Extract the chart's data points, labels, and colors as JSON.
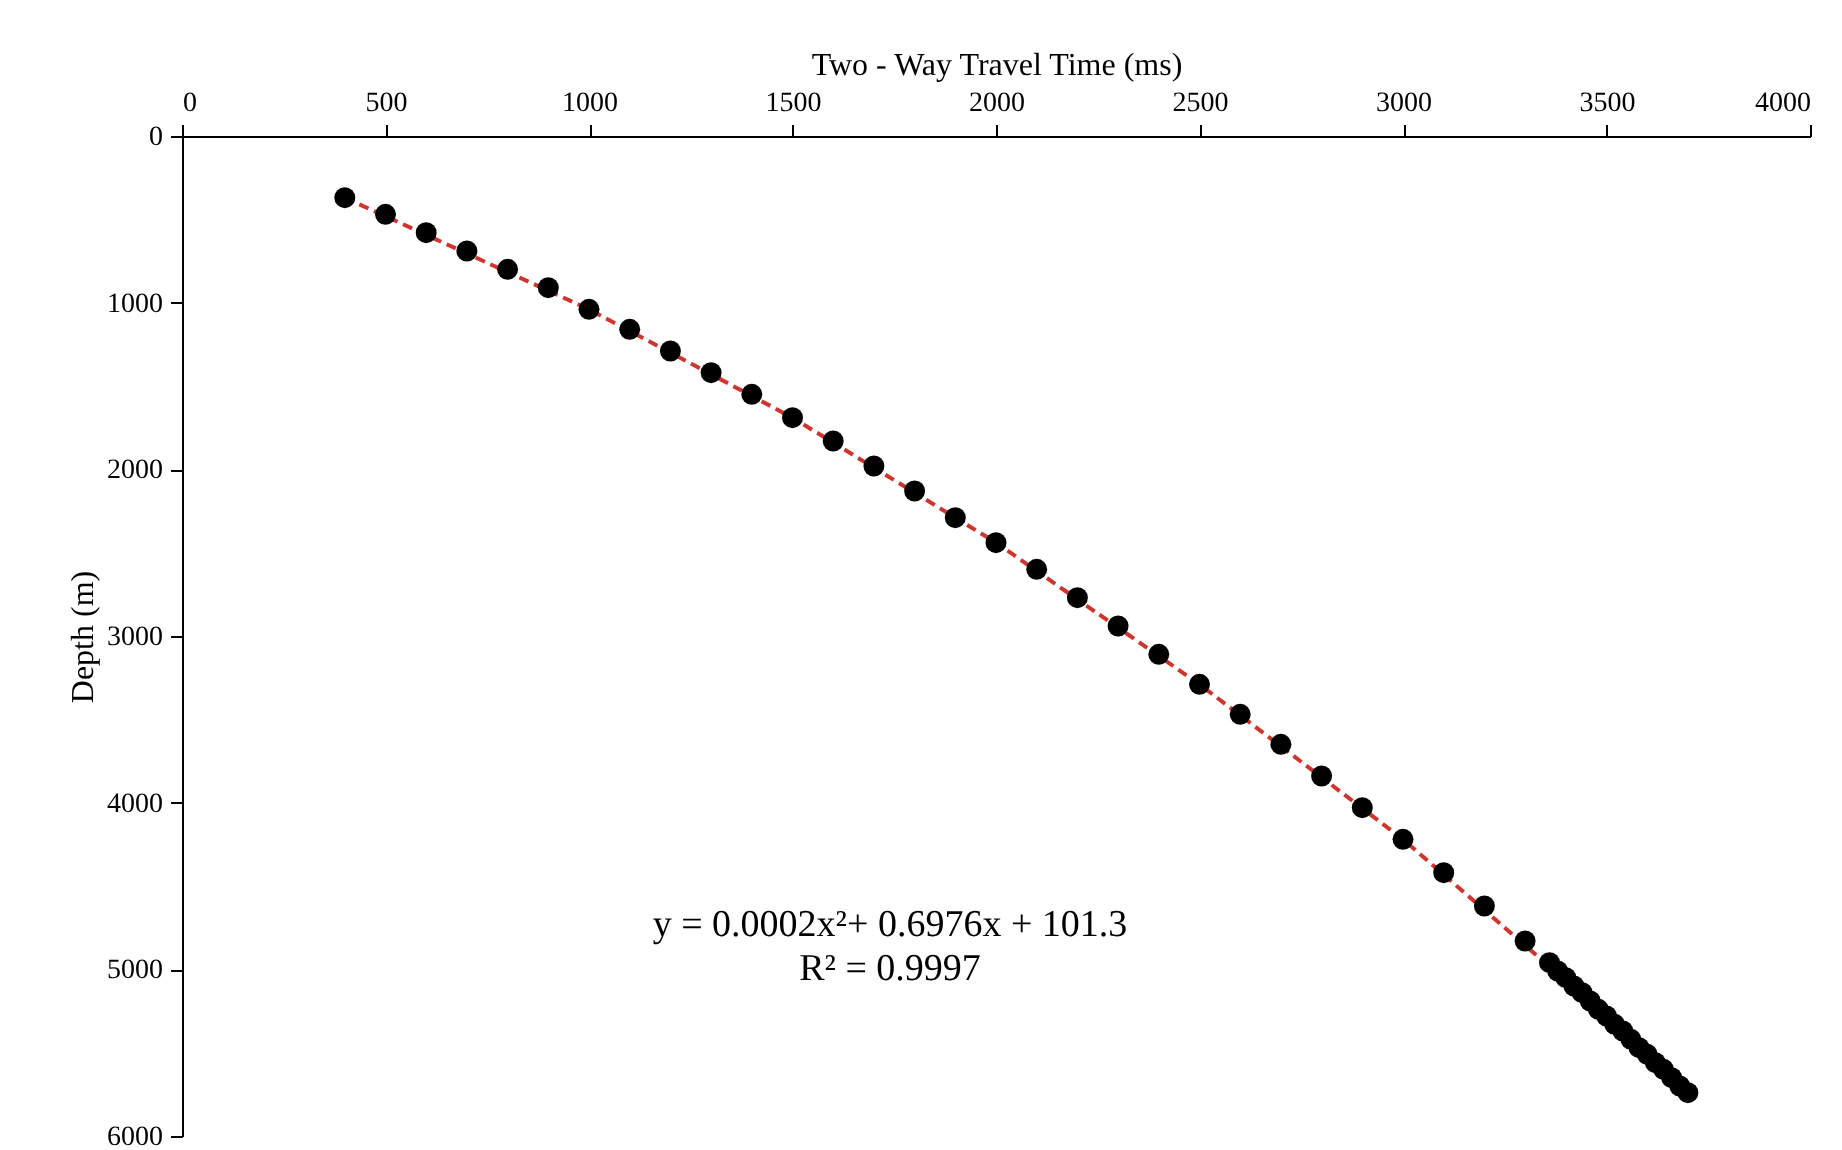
{
  "chart_data": {
    "type": "scatter",
    "xlabel": "Two - Way Travel Time (ms)",
    "ylabel": "Depth (m)",
    "xlim": [
      0,
      4000
    ],
    "xticks": [
      0,
      500,
      1000,
      1500,
      2000,
      2500,
      3000,
      3500,
      4000
    ],
    "ylim": [
      6000,
      0
    ],
    "yticks": [
      0,
      1000,
      2000,
      3000,
      4000,
      5000,
      6000
    ],
    "grid": false,
    "marker": "circle",
    "annotations": [
      "y = 0.0002x²+ 0.6976x + 101.3",
      "R² = 0.9997"
    ],
    "series": [
      {
        "type": "line",
        "color": "#d0342c",
        "line_style": "dashed",
        "marker": "none",
        "x": [
          400,
          1000,
          1500,
          2000,
          2500,
          3000,
          3500,
          3700
        ],
        "values": [
          370,
          1040,
          1690,
          2440,
          3290,
          4220,
          5280,
          5740
        ]
      },
      {
        "color": "#000000",
        "x": [
          400,
          500,
          600,
          700,
          800,
          900,
          1000,
          1100,
          1200,
          1300,
          1400,
          1500,
          1600,
          1700,
          1800,
          1900,
          2000,
          2100,
          2200,
          2300,
          2400,
          2500,
          2600,
          2700,
          2800,
          2900,
          3000,
          3100,
          3200,
          3300,
          3360,
          3380,
          3400,
          3420,
          3440,
          3460,
          3480,
          3500,
          3520,
          3540,
          3560,
          3580,
          3600,
          3620,
          3640,
          3660,
          3680,
          3700
        ],
        "values": [
          370,
          470,
          580,
          690,
          800,
          910,
          1040,
          1160,
          1290,
          1420,
          1550,
          1690,
          1830,
          1980,
          2130,
          2290,
          2440,
          2600,
          2770,
          2940,
          3110,
          3290,
          3470,
          3650,
          3840,
          4030,
          4220,
          4420,
          4620,
          4830,
          4960,
          5010,
          5050,
          5100,
          5140,
          5190,
          5240,
          5280,
          5330,
          5370,
          5420,
          5470,
          5510,
          5560,
          5600,
          5650,
          5700,
          5740
        ]
      }
    ]
  }
}
